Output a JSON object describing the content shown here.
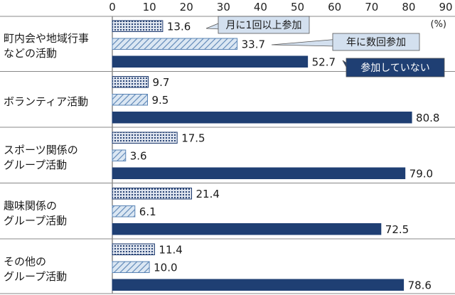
{
  "chart_data": {
    "type": "bar",
    "orientation": "horizontal",
    "unit_label": "(%)",
    "xlim": [
      0,
      90
    ],
    "x_ticks": [
      0,
      10,
      20,
      30,
      40,
      50,
      60,
      70,
      80,
      90
    ],
    "categories": [
      [
        "町内会や地域行事",
        "などの活動"
      ],
      [
        "ボランティア活動"
      ],
      [
        "スポーツ関係の",
        "グループ活動"
      ],
      [
        "趣味関係の",
        "グループ活動"
      ],
      [
        "その他の",
        "グループ活動"
      ]
    ],
    "series": [
      {
        "name": "月に1回以上参加",
        "values": [
          13.6,
          9.7,
          17.5,
          21.4,
          11.4
        ],
        "pattern": "dots",
        "color": "#1e3a6e"
      },
      {
        "name": "年に数回参加",
        "values": [
          33.7,
          9.5,
          3.6,
          6.1,
          10.0
        ],
        "pattern": "hatch",
        "color": "#5a84b5"
      },
      {
        "name": "参加していない",
        "values": [
          52.7,
          80.8,
          79.0,
          72.5,
          78.6
        ],
        "pattern": "solid",
        "color": "#1f3f73"
      }
    ],
    "grid": false,
    "legend_placement": "callouts-top-right"
  }
}
